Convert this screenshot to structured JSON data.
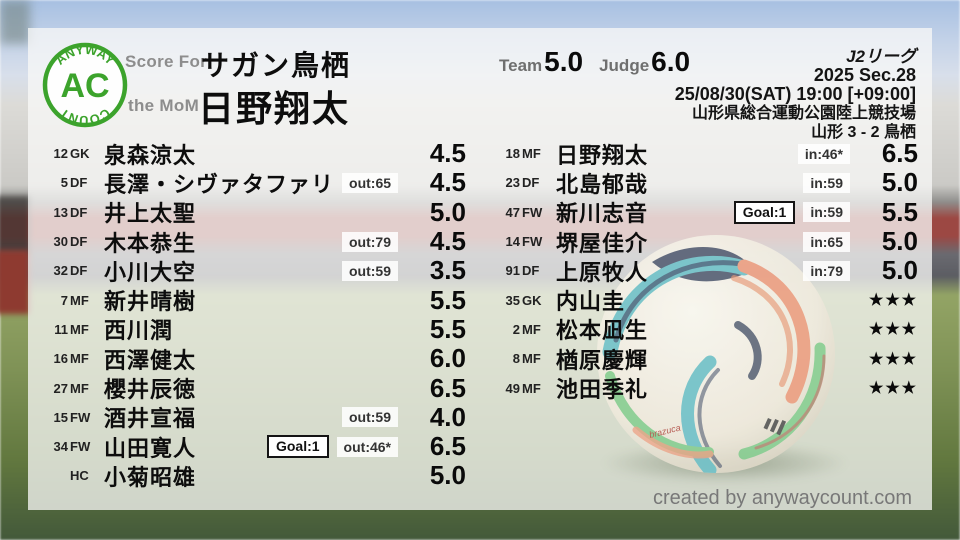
{
  "logo": {
    "arc_top": "ANYWAY",
    "center": "AC",
    "arc_bottom": "COUNT",
    "green": "#3ca32c"
  },
  "header": {
    "score_for_label": "Score For",
    "team_name": "サガン鳥栖",
    "mom_label": "the MoM",
    "mom_name": "日野翔太",
    "team_label": "Team",
    "team_score": "5.0",
    "judge_label": "Judge",
    "judge_score": "6.0"
  },
  "match_info": {
    "league": "J2リーグ",
    "section": "2025 Sec.28",
    "datetime": "25/08/30(SAT) 19:00 [+09:00]",
    "venue": "山形県総合運動公園陸上競技場",
    "result": "山形 3 - 2 鳥栖"
  },
  "starters": [
    {
      "num": "12",
      "pos": "GK",
      "name": "泉森涼太",
      "goal": "",
      "sub": "",
      "score": "4.5",
      "stars": ""
    },
    {
      "num": "5",
      "pos": "DF",
      "name": "長澤・シヴァタファリ",
      "goal": "",
      "sub": "out:65",
      "score": "4.5",
      "stars": ""
    },
    {
      "num": "13",
      "pos": "DF",
      "name": "井上太聖",
      "goal": "",
      "sub": "",
      "score": "5.0",
      "stars": ""
    },
    {
      "num": "30",
      "pos": "DF",
      "name": "木本恭生",
      "goal": "",
      "sub": "out:79",
      "score": "4.5",
      "stars": ""
    },
    {
      "num": "32",
      "pos": "DF",
      "name": "小川大空",
      "goal": "",
      "sub": "out:59",
      "score": "3.5",
      "stars": ""
    },
    {
      "num": "7",
      "pos": "MF",
      "name": "新井晴樹",
      "goal": "",
      "sub": "",
      "score": "5.5",
      "stars": ""
    },
    {
      "num": "11",
      "pos": "MF",
      "name": "西川潤",
      "goal": "",
      "sub": "",
      "score": "5.5",
      "stars": ""
    },
    {
      "num": "16",
      "pos": "MF",
      "name": "西澤健太",
      "goal": "",
      "sub": "",
      "score": "6.0",
      "stars": ""
    },
    {
      "num": "27",
      "pos": "MF",
      "name": "櫻井辰徳",
      "goal": "",
      "sub": "",
      "score": "6.5",
      "stars": ""
    },
    {
      "num": "15",
      "pos": "FW",
      "name": "酒井宣福",
      "goal": "",
      "sub": "out:59",
      "score": "4.0",
      "stars": ""
    },
    {
      "num": "34",
      "pos": "FW",
      "name": "山田寛人",
      "goal": "Goal:1",
      "sub": "out:46*",
      "score": "6.5",
      "stars": ""
    },
    {
      "num": "",
      "pos": "HC",
      "name": "小菊昭雄",
      "goal": "",
      "sub": "",
      "score": "5.0",
      "stars": ""
    }
  ],
  "subs": [
    {
      "num": "18",
      "pos": "MF",
      "name": "日野翔太",
      "goal": "",
      "sub": "in:46*",
      "score": "6.5",
      "stars": ""
    },
    {
      "num": "23",
      "pos": "DF",
      "name": "北島郁哉",
      "goal": "",
      "sub": "in:59",
      "score": "5.0",
      "stars": ""
    },
    {
      "num": "47",
      "pos": "FW",
      "name": "新川志音",
      "goal": "Goal:1",
      "sub": "in:59",
      "score": "5.5",
      "stars": ""
    },
    {
      "num": "14",
      "pos": "FW",
      "name": "堺屋佳介",
      "goal": "",
      "sub": "in:65",
      "score": "5.0",
      "stars": ""
    },
    {
      "num": "91",
      "pos": "DF",
      "name": "上原牧人",
      "goal": "",
      "sub": "in:79",
      "score": "5.0",
      "stars": ""
    },
    {
      "num": "35",
      "pos": "GK",
      "name": "内山圭",
      "goal": "",
      "sub": "",
      "score": "",
      "stars": "★★★"
    },
    {
      "num": "2",
      "pos": "MF",
      "name": "松本凪生",
      "goal": "",
      "sub": "",
      "score": "",
      "stars": "★★★"
    },
    {
      "num": "8",
      "pos": "MF",
      "name": "楢原慶輝",
      "goal": "",
      "sub": "",
      "score": "",
      "stars": "★★★"
    },
    {
      "num": "49",
      "pos": "MF",
      "name": "池田季礼",
      "goal": "",
      "sub": "",
      "score": "",
      "stars": "★★★"
    }
  ],
  "footer": {
    "credit": "created by anywaycount.com"
  }
}
